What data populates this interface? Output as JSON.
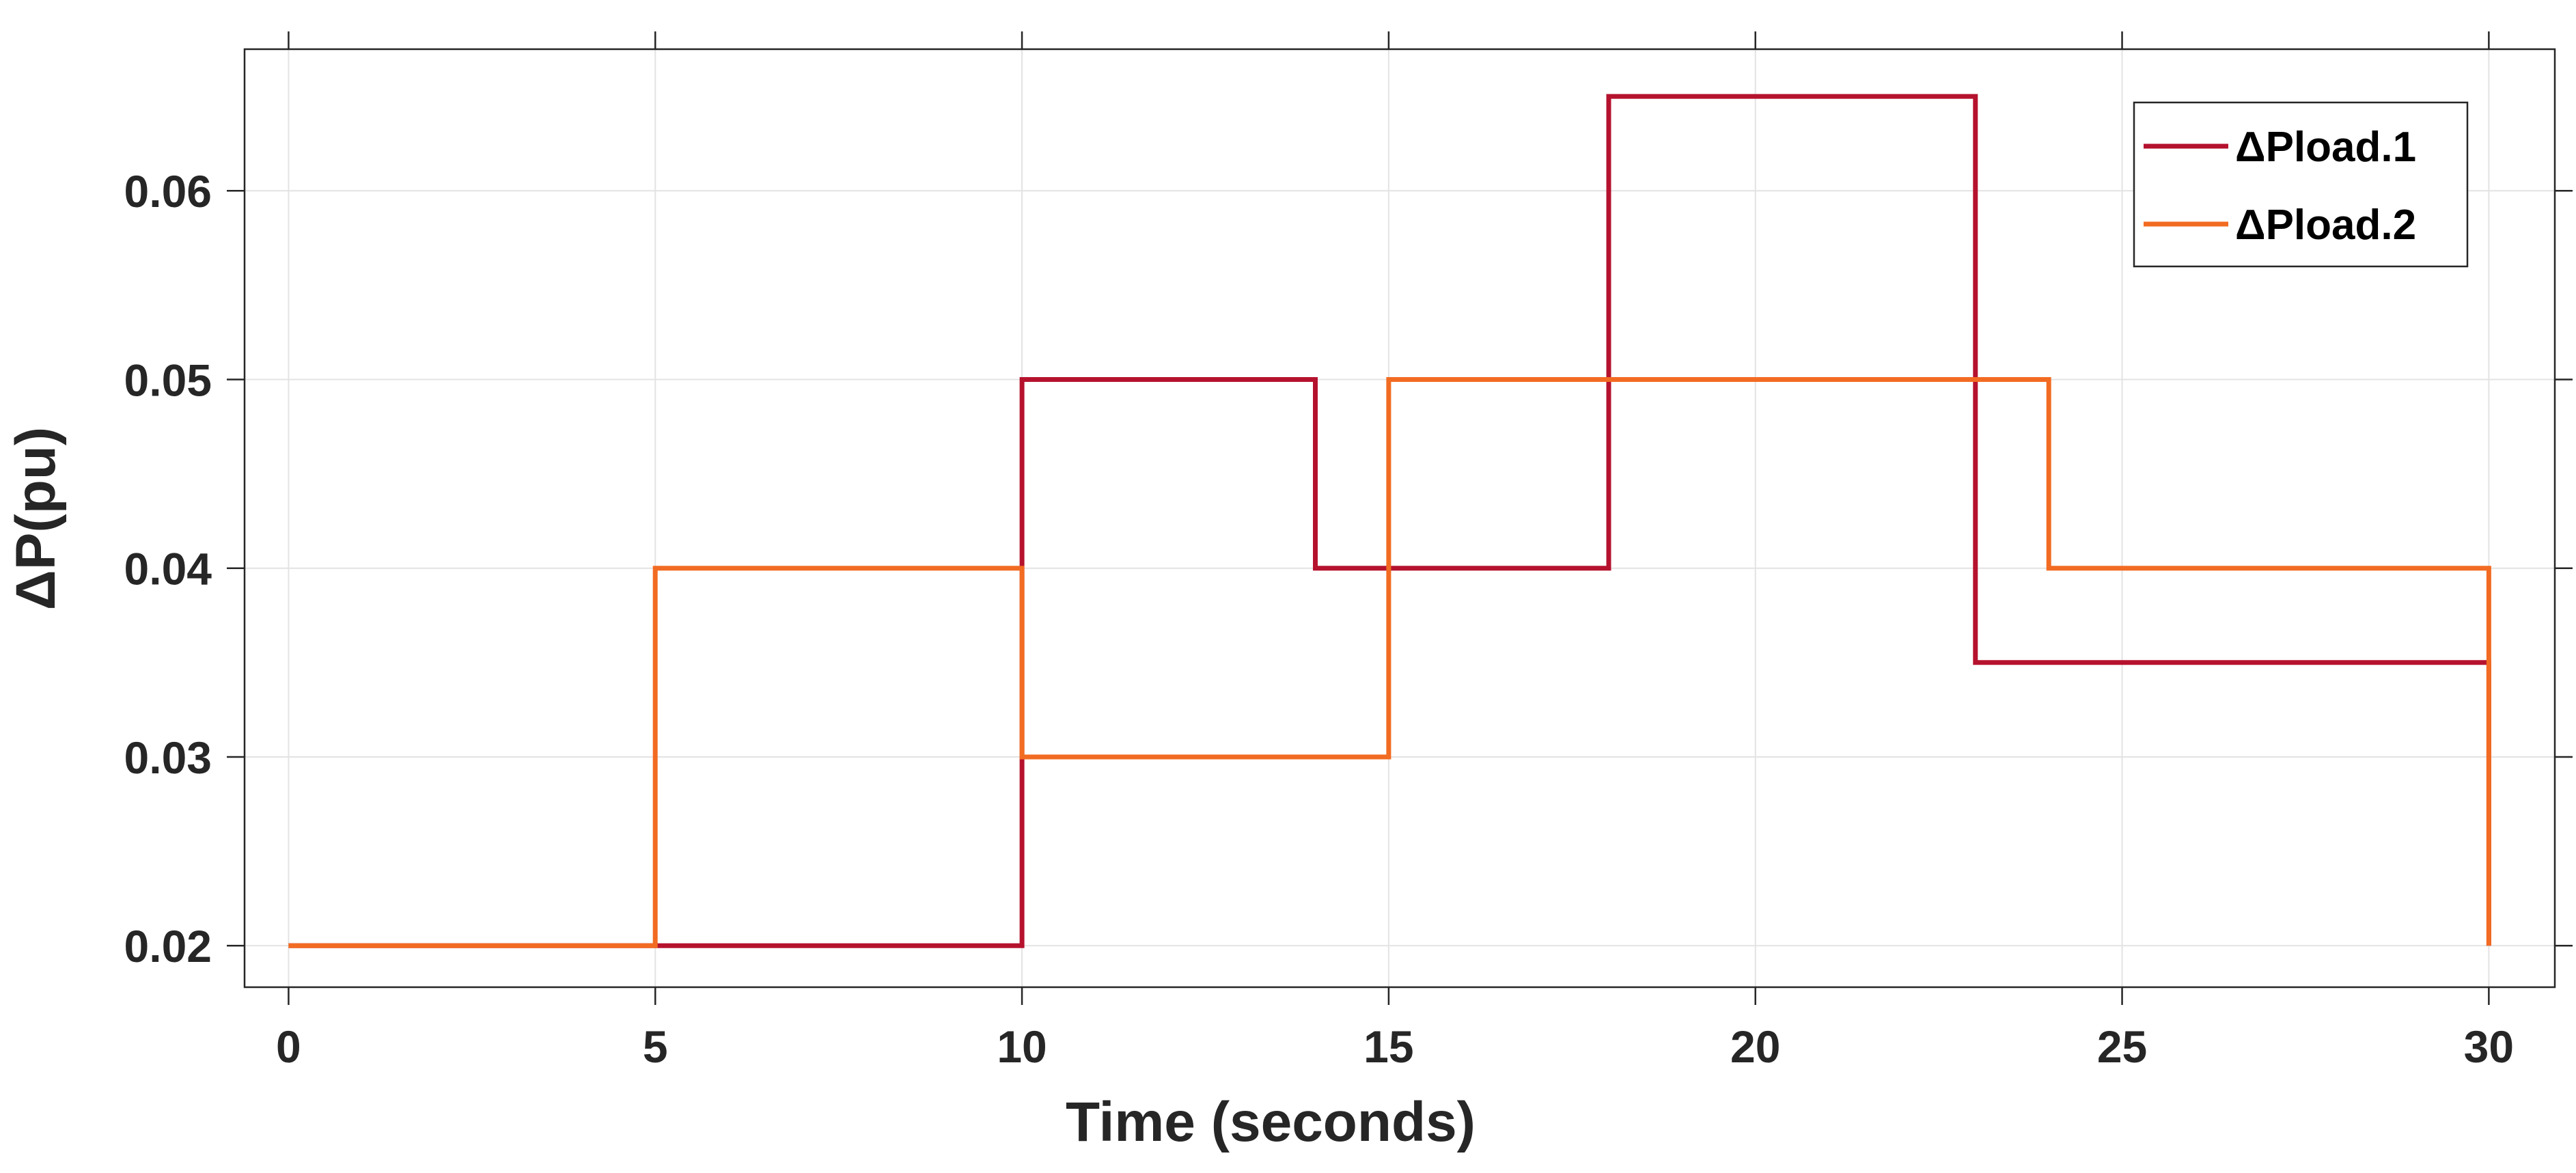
{
  "chart_data": {
    "type": "line",
    "step": true,
    "xlabel": "Time (seconds)",
    "ylabel": "ΔP(pu)",
    "xlim": [
      -0.6,
      30.9
    ],
    "ylim": [
      0.0178,
      0.0675
    ],
    "xticks": [
      0,
      5,
      10,
      15,
      20,
      25,
      30
    ],
    "xtick_labels": [
      "0",
      "5",
      "10",
      "15",
      "20",
      "25",
      "30"
    ],
    "yticks": [
      0.02,
      0.03,
      0.04,
      0.05,
      0.06
    ],
    "ytick_labels": [
      "0.02",
      "0.03",
      "0.04",
      "0.05",
      "0.06"
    ],
    "grid": true,
    "legend_position": "top-right",
    "series": [
      {
        "name": "ΔPload.1",
        "color": "#b5122e",
        "points": [
          [
            0,
            0.02
          ],
          [
            10,
            0.02
          ],
          [
            10,
            0.05
          ],
          [
            14,
            0.05
          ],
          [
            14,
            0.04
          ],
          [
            18,
            0.04
          ],
          [
            18,
            0.065
          ],
          [
            23,
            0.065
          ],
          [
            23,
            0.035
          ],
          [
            30,
            0.035
          ],
          [
            30,
            0.02
          ]
        ]
      },
      {
        "name": "ΔPload.2",
        "color": "#f26b22",
        "points": [
          [
            0,
            0.02
          ],
          [
            5,
            0.02
          ],
          [
            5,
            0.04
          ],
          [
            10,
            0.04
          ],
          [
            10,
            0.03
          ],
          [
            15,
            0.03
          ],
          [
            15,
            0.05
          ],
          [
            24,
            0.05
          ],
          [
            24,
            0.04
          ],
          [
            30,
            0.04
          ],
          [
            30,
            0.02
          ]
        ]
      }
    ]
  }
}
